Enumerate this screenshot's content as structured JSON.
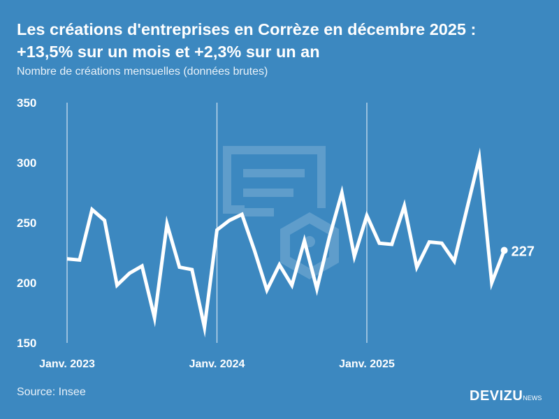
{
  "title_line1": "Les créations d'entreprises en Corrèze en décembre 2025 :",
  "title_line2": "+13,5% sur un mois et +2,3% sur un an",
  "subtitle": "Nombre de créations mensuelles (données brutes)",
  "source": "Source: Insee",
  "logo": {
    "main": "DEVIZU",
    "suffix": "NEWS"
  },
  "colors": {
    "background": "#3c88c0",
    "line": "#ffffff"
  },
  "chart_data": {
    "type": "line",
    "title": "Les créations d'entreprises en Corrèze en décembre 2025 : +13,5% sur un mois et +2,3% sur un an",
    "ylabel": "Nombre de créations mensuelles (données brutes)",
    "ylim": [
      150,
      350
    ],
    "yticks": [
      150,
      200,
      250,
      300,
      350
    ],
    "xticks": [
      {
        "label": "Janv. 2023",
        "index": 0
      },
      {
        "label": "Janv. 2024",
        "index": 12
      },
      {
        "label": "Janv. 2025",
        "index": 24
      }
    ],
    "x": [
      "2023-01",
      "2023-02",
      "2023-03",
      "2023-04",
      "2023-05",
      "2023-06",
      "2023-07",
      "2023-08",
      "2023-09",
      "2023-10",
      "2023-11",
      "2023-12",
      "2024-01",
      "2024-02",
      "2024-03",
      "2024-04",
      "2024-05",
      "2024-06",
      "2024-07",
      "2024-08",
      "2024-09",
      "2024-10",
      "2024-11",
      "2024-12",
      "2025-01",
      "2025-02",
      "2025-03",
      "2025-04",
      "2025-05",
      "2025-06",
      "2025-07",
      "2025-08",
      "2025-09",
      "2025-10",
      "2025-11",
      "2025-12"
    ],
    "values": [
      220,
      219,
      261,
      252,
      198,
      208,
      214,
      171,
      249,
      213,
      211,
      163,
      244,
      252,
      257,
      227,
      194,
      215,
      198,
      235,
      195,
      238,
      275,
      222,
      256,
      233,
      232,
      264,
      213,
      234,
      233,
      218,
      261,
      304,
      200,
      227
    ],
    "last_label": "227",
    "grid": "vertical lines at January"
  }
}
